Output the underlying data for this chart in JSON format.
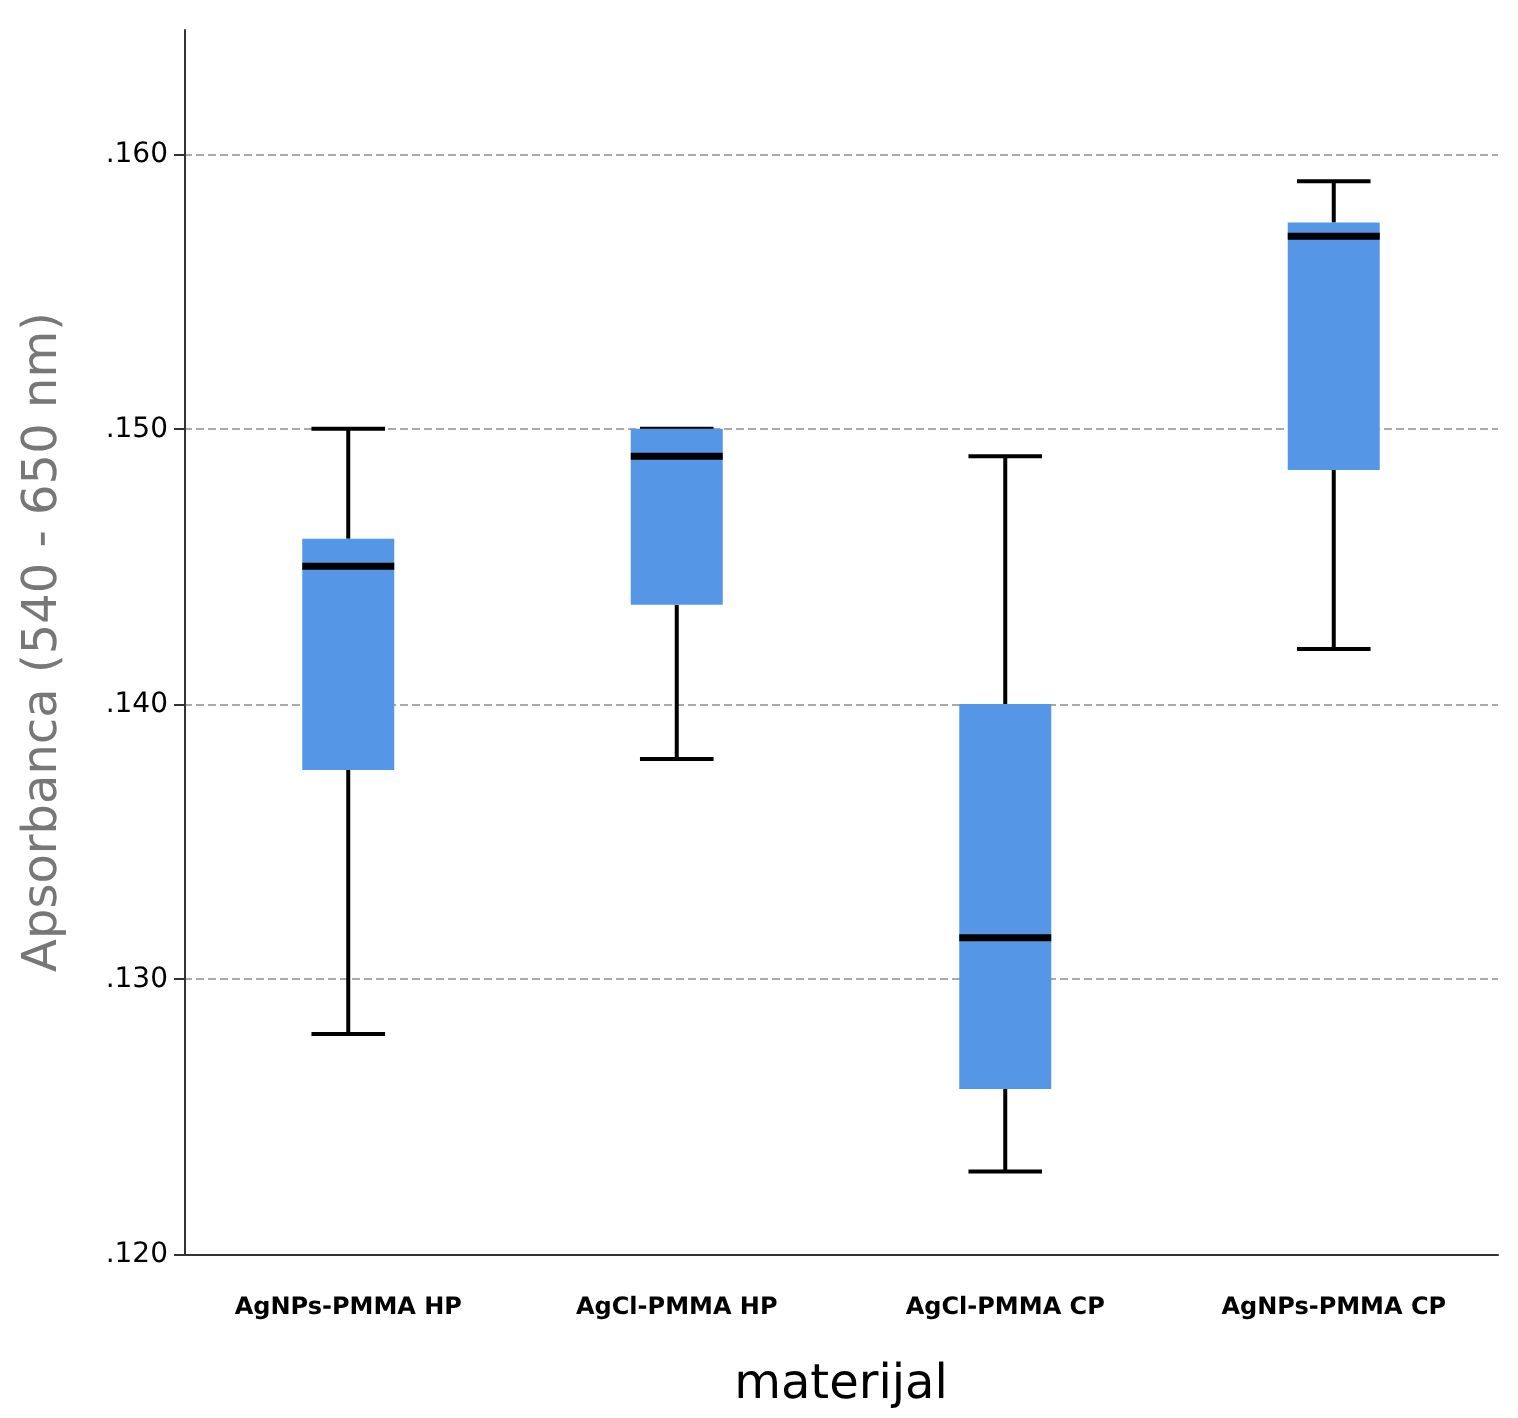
{
  "chart_data": {
    "type": "box",
    "xlabel": "materijal",
    "ylabel": "Apsorbanca (540 - 650 nm)",
    "categories": [
      "AgNPs-PMMA HP",
      "AgCl-PMMA HP",
      "AgCl-PMMA CP",
      "AgNPs-PMMA CP"
    ],
    "series": [
      {
        "color": "#5596e6",
        "boxes": [
          {
            "low": 0.128,
            "q1": 0.1376,
            "median": 0.145,
            "q3": 0.146,
            "high": 0.15
          },
          {
            "low": 0.138,
            "q1": 0.1436,
            "median": 0.149,
            "q3": 0.15,
            "high": 0.15
          },
          {
            "low": 0.123,
            "q1": 0.126,
            "median": 0.1315,
            "q3": 0.14,
            "high": 0.149
          },
          {
            "low": 0.142,
            "q1": 0.1485,
            "median": 0.157,
            "q3": 0.1575,
            "high": 0.159
          }
        ]
      }
    ],
    "ylim": [
      0.12,
      0.1645
    ],
    "yticks": [
      {
        "value": 0.12,
        "label": ".120"
      },
      {
        "value": 0.13,
        "label": ".130"
      },
      {
        "value": 0.14,
        "label": ".140"
      },
      {
        "value": 0.15,
        "label": ".150"
      },
      {
        "value": 0.16,
        "label": ".160"
      }
    ],
    "grid": "y",
    "line_style": "dashed"
  }
}
